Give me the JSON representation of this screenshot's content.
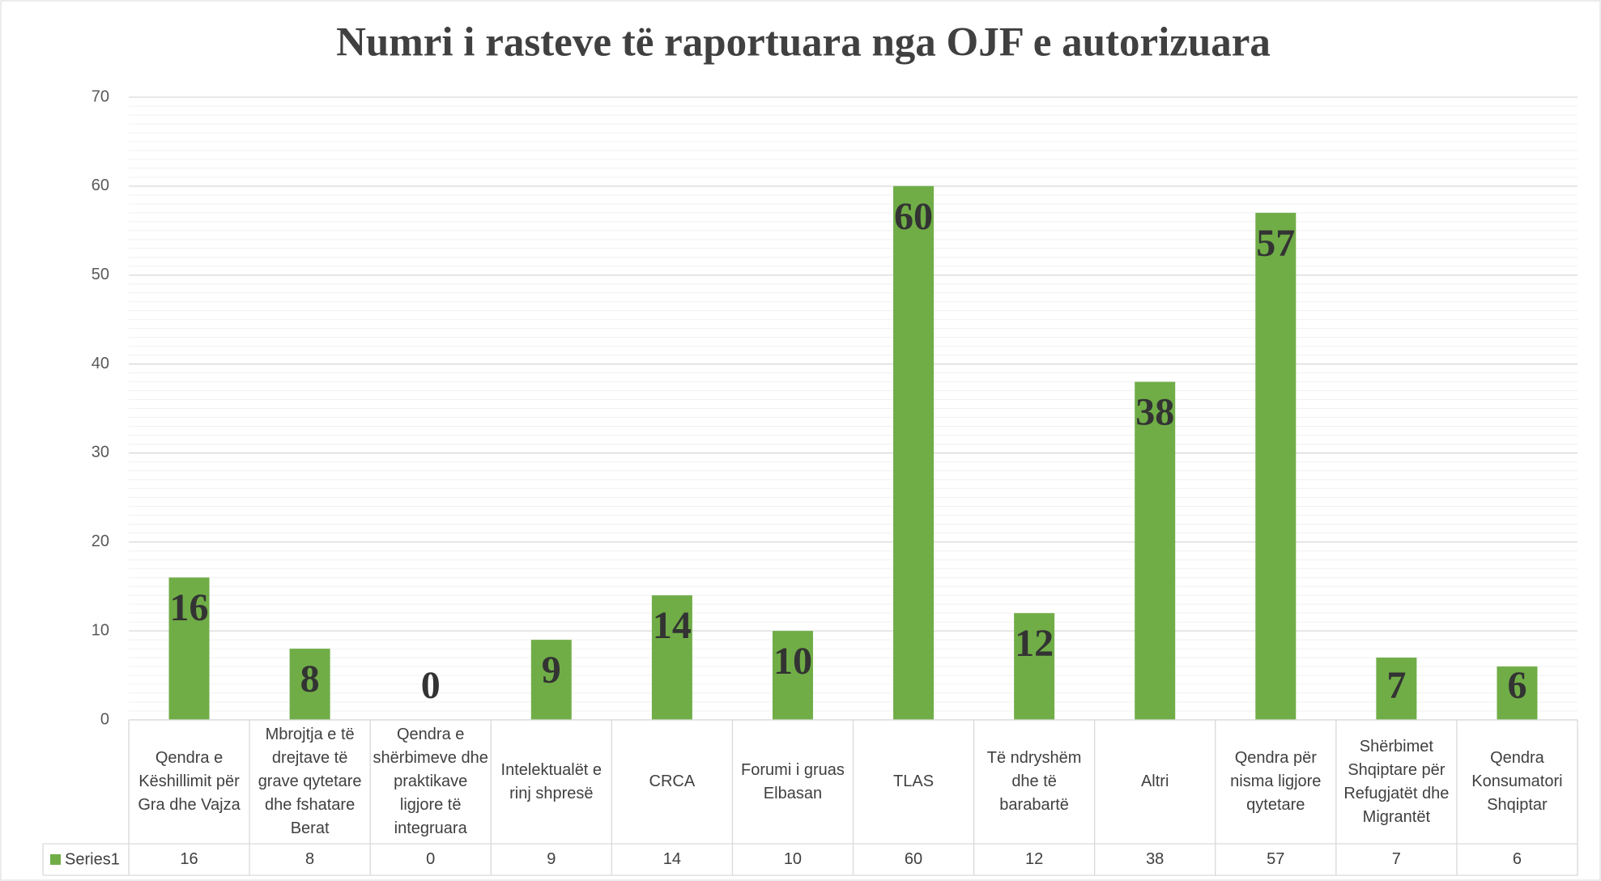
{
  "chart_data": {
    "type": "bar",
    "title": "Numri i rasteve të raportuara nga OJF e autorizuara",
    "categories": [
      "Qendra e Këshillimit për Gra dhe Vajza",
      "Mbrojtja e të drejtave të grave qytetare dhe fshatare Berat",
      "Qendra e shërbimeve dhe praktikave ligjore të integruara",
      "Intelektualët e rinj shpresë",
      "CRCA",
      "Forumi i gruas Elbasan",
      "TLAS",
      "Të ndryshëm dhe të barabartë",
      "Altri",
      "Qendra për nisma ligjore qytetare",
      "Shërbimet Shqiptare për Refugjatët dhe Migrantët",
      "Qendra Konsumatori Shqiptar"
    ],
    "series": [
      {
        "name": "Series1",
        "color": "#70ad47",
        "values": [
          16,
          8,
          0,
          9,
          14,
          10,
          60,
          12,
          38,
          57,
          7,
          6
        ]
      }
    ],
    "ylim": [
      0,
      70
    ],
    "yticks": [
      0,
      10,
      20,
      30,
      40,
      50,
      60,
      70
    ],
    "grid": true,
    "minor_grid_step": 1
  }
}
